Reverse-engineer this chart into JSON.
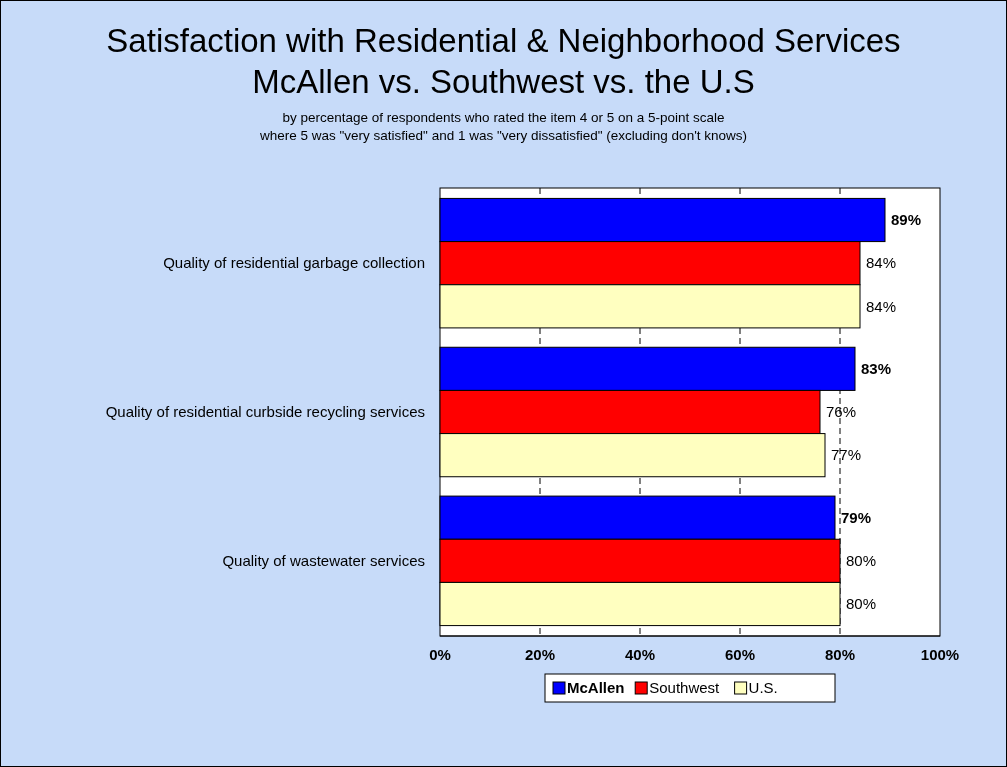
{
  "chart_data": {
    "type": "bar",
    "orientation": "horizontal",
    "title": "Satisfaction with Residential & Neighborhood Services",
    "subtitle": "McAllen vs. Southwest vs. the U.S",
    "annotations": [
      "by percentage of respondents who rated the item 4 or 5 on a 5-point scale",
      "where 5 was \"very satisfied\" and 1 was \"very dissatisfied\" (excluding don't knows)"
    ],
    "categories": [
      "Quality of residential garbage collection",
      "Quality of residential curbside recycling services",
      "Quality of wastewater services"
    ],
    "series": [
      {
        "name": "McAllen",
        "color": "#0000ff",
        "values": [
          89,
          83,
          79
        ],
        "value_labels": [
          "89%",
          "83%",
          "79%"
        ]
      },
      {
        "name": "Southwest",
        "color": "#ff0000",
        "values": [
          84,
          76,
          80
        ],
        "value_labels": [
          "84%",
          "76%",
          "80%"
        ]
      },
      {
        "name": "U.S.",
        "color": "#ffffc0",
        "values": [
          84,
          77,
          80
        ],
        "value_labels": [
          "84%",
          "77%",
          "80%"
        ]
      }
    ],
    "xlim": [
      0,
      100
    ],
    "xticks": [
      {
        "value": 0,
        "label": "0%"
      },
      {
        "value": 20,
        "label": "20%"
      },
      {
        "value": 40,
        "label": "40%"
      },
      {
        "value": 60,
        "label": "60%"
      },
      {
        "value": 80,
        "label": "80%"
      },
      {
        "value": 100,
        "label": "100%"
      }
    ],
    "grid": "x",
    "legend": "bottom"
  }
}
